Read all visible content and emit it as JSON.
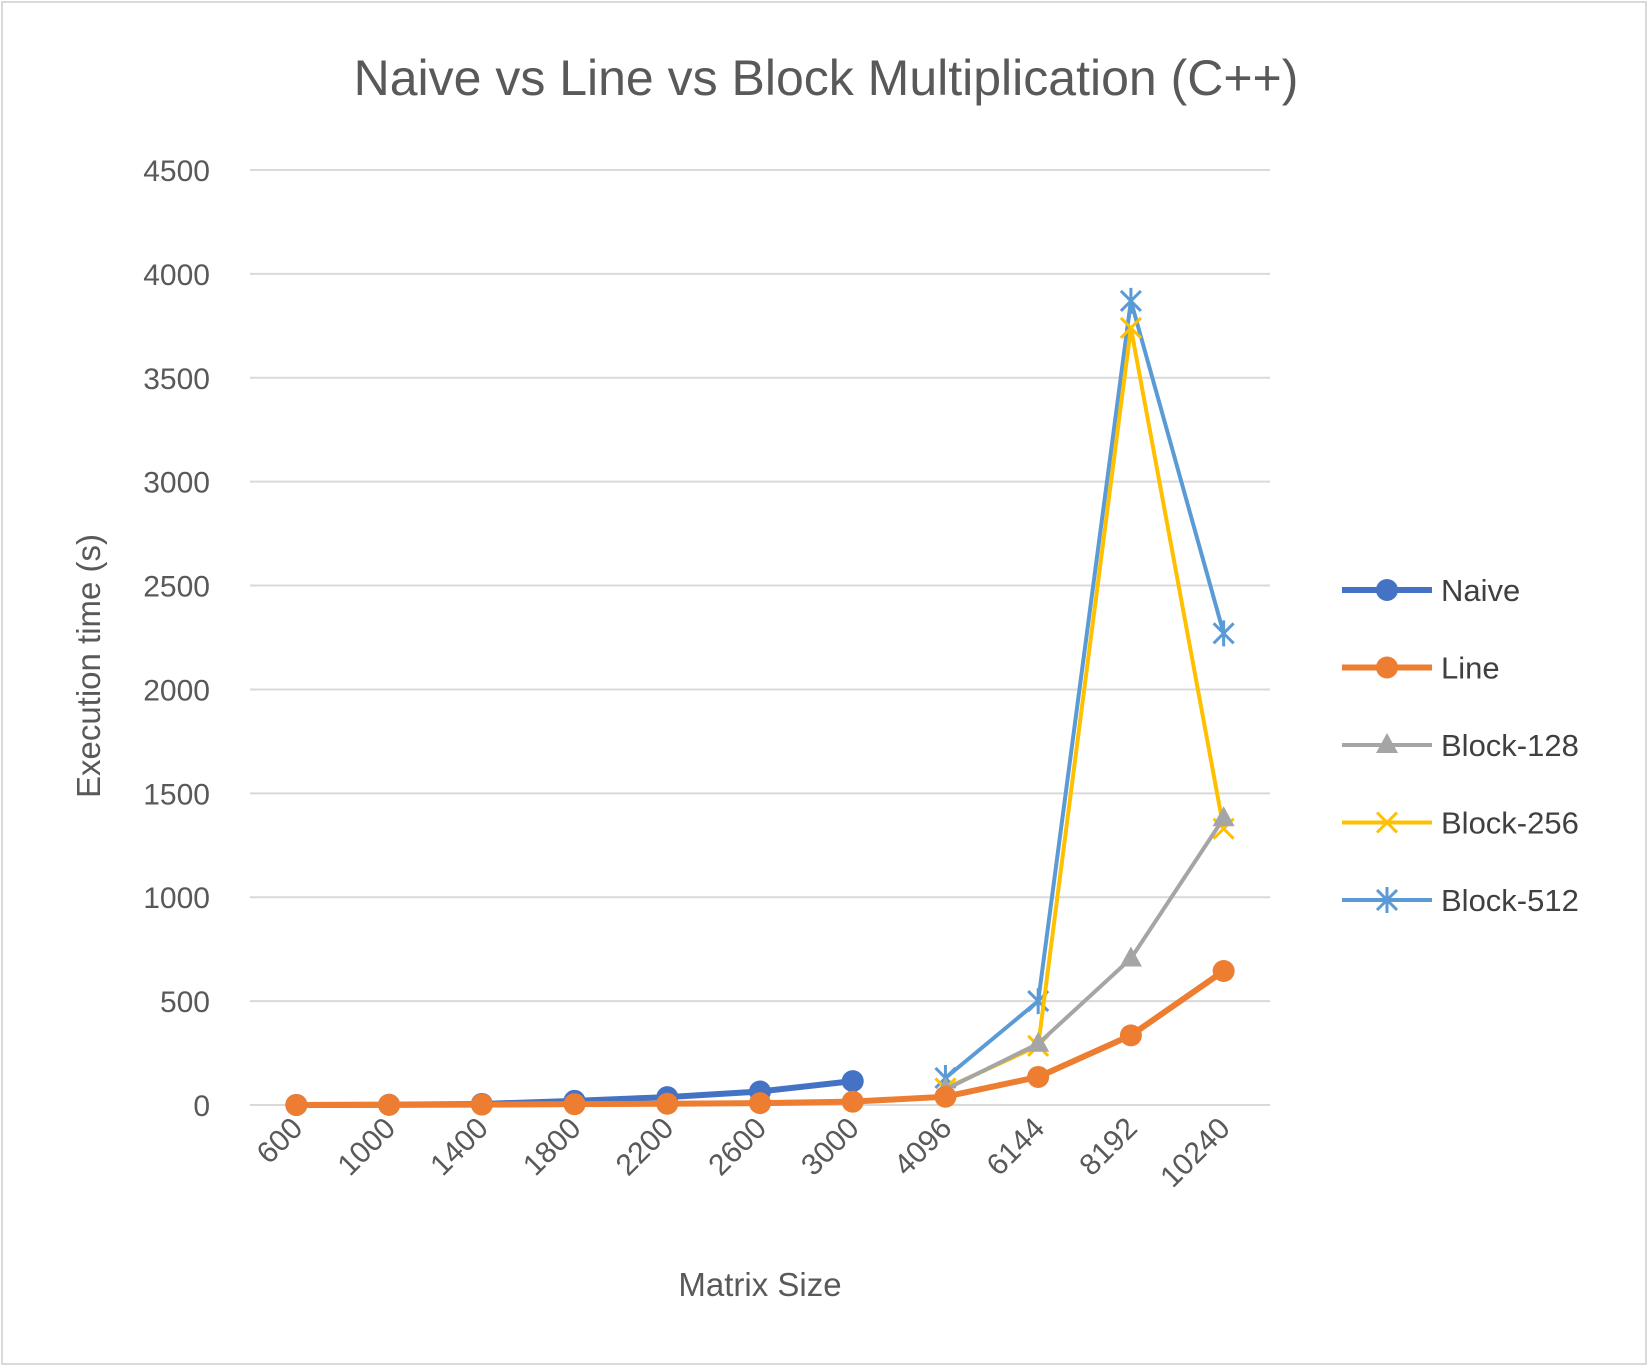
{
  "chart_data": {
    "type": "line",
    "title": "Naive vs Line vs Block Multiplication (C++)",
    "xlabel": "Matrix Size",
    "ylabel": "Execution time (s)",
    "categories": [
      "600",
      "1000",
      "1400",
      "1800",
      "2200",
      "2600",
      "3000",
      "4096",
      "6144",
      "8192",
      "10240"
    ],
    "ylim": [
      0,
      4500
    ],
    "yticks": [
      0,
      500,
      1000,
      1500,
      2000,
      2500,
      3000,
      3500,
      4000,
      4500
    ],
    "grid": true,
    "legend_position": "right",
    "series": [
      {
        "name": "Naive",
        "color": "#4472C4",
        "marker": "circle",
        "values": [
          0.2,
          1.2,
          5,
          20,
          38,
          65,
          115,
          null,
          null,
          null,
          null
        ]
      },
      {
        "name": "Line",
        "color": "#ED7D31",
        "marker": "circle",
        "values": [
          0.1,
          0.5,
          2,
          4,
          6,
          9,
          16,
          40,
          135,
          335,
          645
        ]
      },
      {
        "name": "Block-128",
        "color": "#A5A5A5",
        "marker": "triangle",
        "values": [
          null,
          null,
          null,
          null,
          null,
          null,
          null,
          75,
          295,
          705,
          1380
        ]
      },
      {
        "name": "Block-256",
        "color": "#FFC000",
        "marker": "x",
        "values": [
          null,
          null,
          null,
          null,
          null,
          null,
          null,
          80,
          285,
          3740,
          1330
        ]
      },
      {
        "name": "Block-512",
        "color": "#5B9BD5",
        "marker": "star",
        "values": [
          null,
          null,
          null,
          null,
          null,
          null,
          null,
          130,
          500,
          3870,
          2270
        ]
      }
    ]
  }
}
